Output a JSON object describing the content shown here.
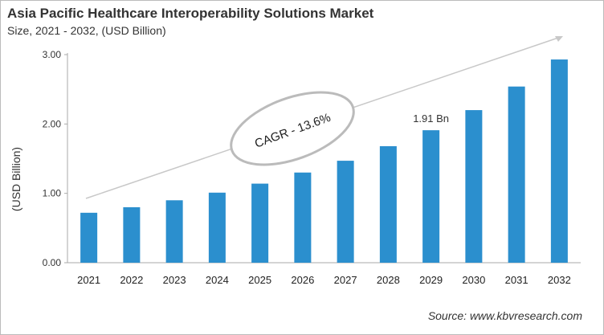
{
  "chart_data": {
    "type": "bar",
    "title": "Asia Pacific Healthcare Interoperability Solutions Market",
    "subtitle": "Size, 2021 - 2032, (USD Billion)",
    "ylabel": "(USD Billion)",
    "xlabel": "",
    "categories": [
      "2021",
      "2022",
      "2023",
      "2024",
      "2025",
      "2026",
      "2027",
      "2028",
      "2029",
      "2030",
      "2031",
      "2032"
    ],
    "values": [
      0.72,
      0.8,
      0.9,
      1.01,
      1.14,
      1.3,
      1.47,
      1.68,
      1.91,
      2.2,
      2.54,
      2.93
    ],
    "ylim": [
      0,
      3
    ],
    "yticks": [
      "0.00",
      "1.00",
      "2.00",
      "3.00"
    ],
    "grid": false,
    "bar_color": "#2b8fce",
    "annotations": {
      "data_label": "1.91 Bn",
      "data_label_category": "2029",
      "cagr": "CAGR - 13.6%"
    }
  },
  "source": "Source: www.kbvresearch.com"
}
